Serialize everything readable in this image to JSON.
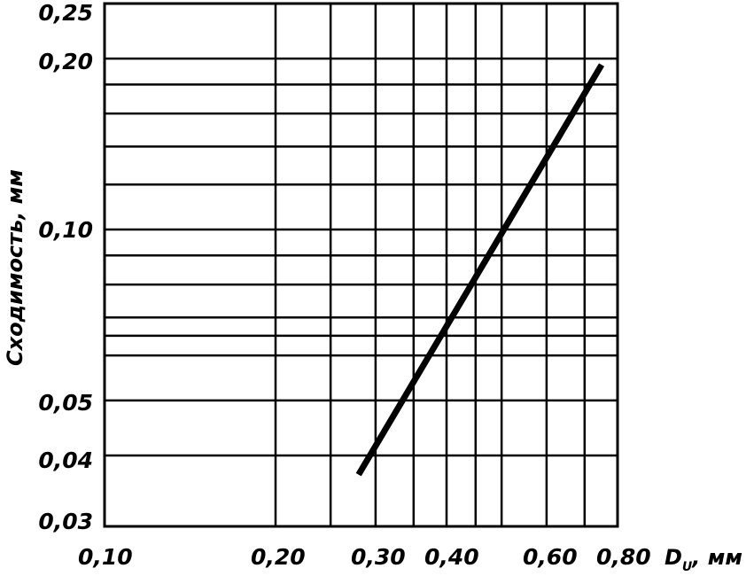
{
  "chart_data": {
    "type": "line",
    "ylabel": "Сходимость, мм",
    "x_tick_labels": [
      "0,10",
      "0,20",
      "0,30",
      "0,40",
      "0,60",
      "0,80"
    ],
    "x_axis_unit_label": "D",
    "x_axis_unit_subscript": "U",
    "x_axis_unit_suffix": ", мм",
    "y_tick_labels": [
      "0,25",
      "0,20",
      "0,10",
      "0,05",
      "0,04",
      "0,03"
    ],
    "x_scale": "log",
    "y_scale": "log",
    "xlim": [
      0.1,
      0.8
    ],
    "ylim": [
      0.03,
      0.25
    ],
    "x_gridlines": [
      0.2,
      0.25,
      0.3,
      0.35,
      0.4,
      0.45,
      0.5,
      0.6,
      0.7,
      0.8
    ],
    "y_gridlines": [
      0.04,
      0.05,
      0.06,
      0.065,
      0.07,
      0.08,
      0.09,
      0.1,
      0.12,
      0.14,
      0.16,
      0.18,
      0.2,
      0.25
    ],
    "grid": true,
    "series": [
      {
        "x": [
          0.28,
          0.75
        ],
        "y": [
          0.037,
          0.195
        ]
      }
    ],
    "colors": {
      "line": "#000000",
      "grid": "#000000",
      "background": "#ffffff"
    }
  }
}
